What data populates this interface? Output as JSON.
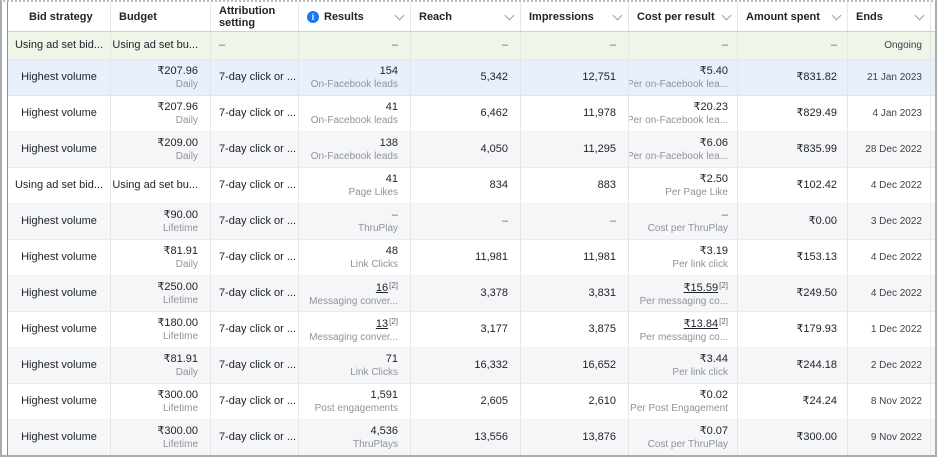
{
  "colors": {
    "info_icon_blue": "#1877f2",
    "row_highlight_green": "#eef6ea",
    "row_highlight_blue": "#e7f0fb",
    "row_alt_gray": "#f5f6f7",
    "header_text": "#20242b",
    "sub_label_gray": "#8f939a"
  },
  "icons": {
    "info_glyph": "i",
    "sort_arrow": "chevron-down"
  },
  "table": {
    "columns": [
      {
        "key": "bid_strategy",
        "label": "Bid strategy",
        "sortable": false
      },
      {
        "key": "budget",
        "label": "Budget",
        "sortable": false
      },
      {
        "key": "attribution",
        "label": "Attribution setting",
        "sortable": false
      },
      {
        "key": "results",
        "label": "Results",
        "sortable": true,
        "info_icon": true
      },
      {
        "key": "reach",
        "label": "Reach",
        "sortable": true
      },
      {
        "key": "impressions",
        "label": "Impressions",
        "sortable": true
      },
      {
        "key": "cost",
        "label": "Cost per result",
        "sortable": true
      },
      {
        "key": "amount",
        "label": "Amount spent",
        "sortable": true
      },
      {
        "key": "ends",
        "label": "Ends",
        "sortable": true
      }
    ],
    "rows": [
      {
        "bg": "green",
        "bid_strategy": "Using ad set bid...",
        "budget": "Using ad set bu...",
        "budget_sub": "",
        "attribution": "–",
        "results": "–",
        "results_ref": "",
        "results_sub": "",
        "reach": "–",
        "impressions": "–",
        "cost": "–",
        "cost_ref": "",
        "cost_sub": "",
        "amount": "–",
        "ends": "Ongoing"
      },
      {
        "bg": "blue",
        "bid_strategy": "Highest volume",
        "budget": "₹207.96",
        "budget_sub": "Daily",
        "attribution": "7-day click or ...",
        "results": "154",
        "results_ref": "",
        "results_sub": "On-Facebook leads",
        "reach": "5,342",
        "impressions": "12,751",
        "cost": "₹5.40",
        "cost_ref": "",
        "cost_sub": "Per on-Facebook lea...",
        "amount": "₹831.82",
        "ends": "21 Jan 2023"
      },
      {
        "bg": "white",
        "bid_strategy": "Highest volume",
        "budget": "₹207.96",
        "budget_sub": "Daily",
        "attribution": "7-day click or ...",
        "results": "41",
        "results_ref": "",
        "results_sub": "On-Facebook leads",
        "reach": "6,462",
        "impressions": "11,978",
        "cost": "₹20.23",
        "cost_ref": "",
        "cost_sub": "Per on-Facebook lea...",
        "amount": "₹829.49",
        "ends": "4 Jan 2023"
      },
      {
        "bg": "gray",
        "bid_strategy": "Highest volume",
        "budget": "₹209.00",
        "budget_sub": "Daily",
        "attribution": "7-day click or ...",
        "results": "138",
        "results_ref": "",
        "results_sub": "On-Facebook leads",
        "reach": "4,050",
        "impressions": "11,295",
        "cost": "₹6.06",
        "cost_ref": "",
        "cost_sub": "Per on-Facebook lea...",
        "amount": "₹835.99",
        "ends": "28 Dec 2022"
      },
      {
        "bg": "white",
        "bid_strategy": "Using ad set bid...",
        "budget": "Using ad set bu...",
        "budget_sub": "",
        "attribution": "7-day click or ...",
        "results": "41",
        "results_ref": "",
        "results_sub": "Page Likes",
        "reach": "834",
        "impressions": "883",
        "cost": "₹2.50",
        "cost_ref": "",
        "cost_sub": "Per Page Like",
        "amount": "₹102.42",
        "ends": "4 Dec 2022"
      },
      {
        "bg": "gray",
        "bid_strategy": "Highest volume",
        "budget": "₹90.00",
        "budget_sub": "Lifetime",
        "attribution": "7-day click or ...",
        "results": "–",
        "results_ref": "",
        "results_sub": "ThruPlay",
        "reach": "–",
        "impressions": "–",
        "cost": "–",
        "cost_ref": "",
        "cost_sub": "Cost per ThruPlay",
        "amount": "₹0.00",
        "ends": "3 Dec 2022"
      },
      {
        "bg": "white",
        "bid_strategy": "Highest volume",
        "budget": "₹81.91",
        "budget_sub": "Daily",
        "attribution": "7-day click or ...",
        "results": "48",
        "results_ref": "",
        "results_sub": "Link Clicks",
        "reach": "11,981",
        "impressions": "11,981",
        "cost": "₹3.19",
        "cost_ref": "",
        "cost_sub": "Per link click",
        "amount": "₹153.13",
        "ends": "4 Dec 2022"
      },
      {
        "bg": "gray",
        "bid_strategy": "Highest volume",
        "budget": "₹250.00",
        "budget_sub": "Lifetime",
        "attribution": "7-day click or ...",
        "results": "16",
        "results_ref": "[2]",
        "results_sub": "Messaging conver...",
        "reach": "3,378",
        "impressions": "3,831",
        "cost": "₹15.59",
        "cost_ref": "[2]",
        "cost_sub": "Per messaging co...",
        "amount": "₹249.50",
        "ends": "4 Dec 2022"
      },
      {
        "bg": "white",
        "bid_strategy": "Highest volume",
        "budget": "₹180.00",
        "budget_sub": "Lifetime",
        "attribution": "7-day click or ...",
        "results": "13",
        "results_ref": "[2]",
        "results_sub": "Messaging conver...",
        "reach": "3,177",
        "impressions": "3,875",
        "cost": "₹13.84",
        "cost_ref": "[2]",
        "cost_sub": "Per messaging co...",
        "amount": "₹179.93",
        "ends": "1 Dec 2022"
      },
      {
        "bg": "gray",
        "bid_strategy": "Highest volume",
        "budget": "₹81.91",
        "budget_sub": "Daily",
        "attribution": "7-day click or ...",
        "results": "71",
        "results_ref": "",
        "results_sub": "Link Clicks",
        "reach": "16,332",
        "impressions": "16,652",
        "cost": "₹3.44",
        "cost_ref": "",
        "cost_sub": "Per link click",
        "amount": "₹244.18",
        "ends": "2 Dec 2022"
      },
      {
        "bg": "white",
        "bid_strategy": "Highest volume",
        "budget": "₹300.00",
        "budget_sub": "Lifetime",
        "attribution": "7-day click or ...",
        "results": "1,591",
        "results_ref": "",
        "results_sub": "Post engagements",
        "reach": "2,605",
        "impressions": "2,610",
        "cost": "₹0.02",
        "cost_ref": "",
        "cost_sub": "Per Post Engagement",
        "amount": "₹24.24",
        "ends": "8 Nov 2022"
      },
      {
        "bg": "gray",
        "bid_strategy": "Highest volume",
        "budget": "₹300.00",
        "budget_sub": "Lifetime",
        "attribution": "7-day click or ...",
        "results": "4,536",
        "results_ref": "",
        "results_sub": "ThruPlays",
        "reach": "13,556",
        "impressions": "13,876",
        "cost": "₹0.07",
        "cost_ref": "",
        "cost_sub": "Cost per ThruPlay",
        "amount": "₹300.00",
        "ends": "9 Nov 2022"
      }
    ]
  }
}
